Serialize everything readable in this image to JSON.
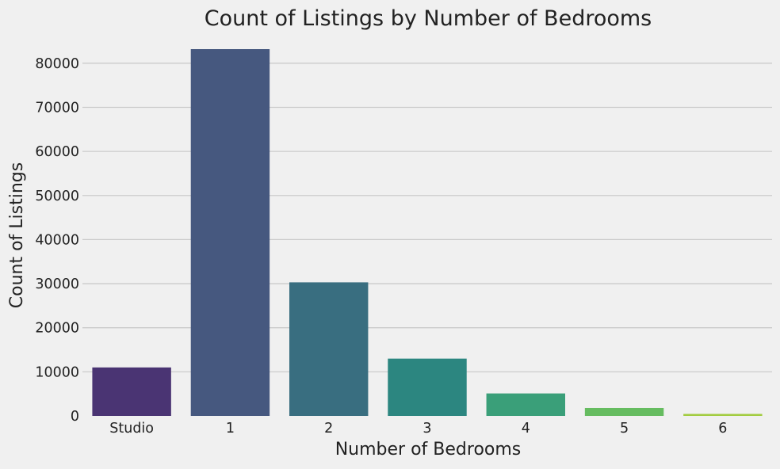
{
  "chart_data": {
    "type": "bar",
    "title": "Count of Listings by Number of Bedrooms",
    "xlabel": "Number of Bedrooms",
    "ylabel": "Count of Listings",
    "categories": [
      "Studio",
      "1",
      "2",
      "3",
      "4",
      "5",
      "6"
    ],
    "values": [
      11000,
      83200,
      30300,
      13000,
      5100,
      1800,
      450
    ],
    "ylim": [
      0,
      85000
    ],
    "yticks": [
      0,
      10000,
      20000,
      30000,
      40000,
      50000,
      60000,
      70000,
      80000
    ],
    "grid": "horizontal",
    "colors": [
      "#4a3473",
      "#46587f",
      "#396e80",
      "#2c8680",
      "#3a9f79",
      "#66bc60",
      "#a2cc3f"
    ]
  }
}
